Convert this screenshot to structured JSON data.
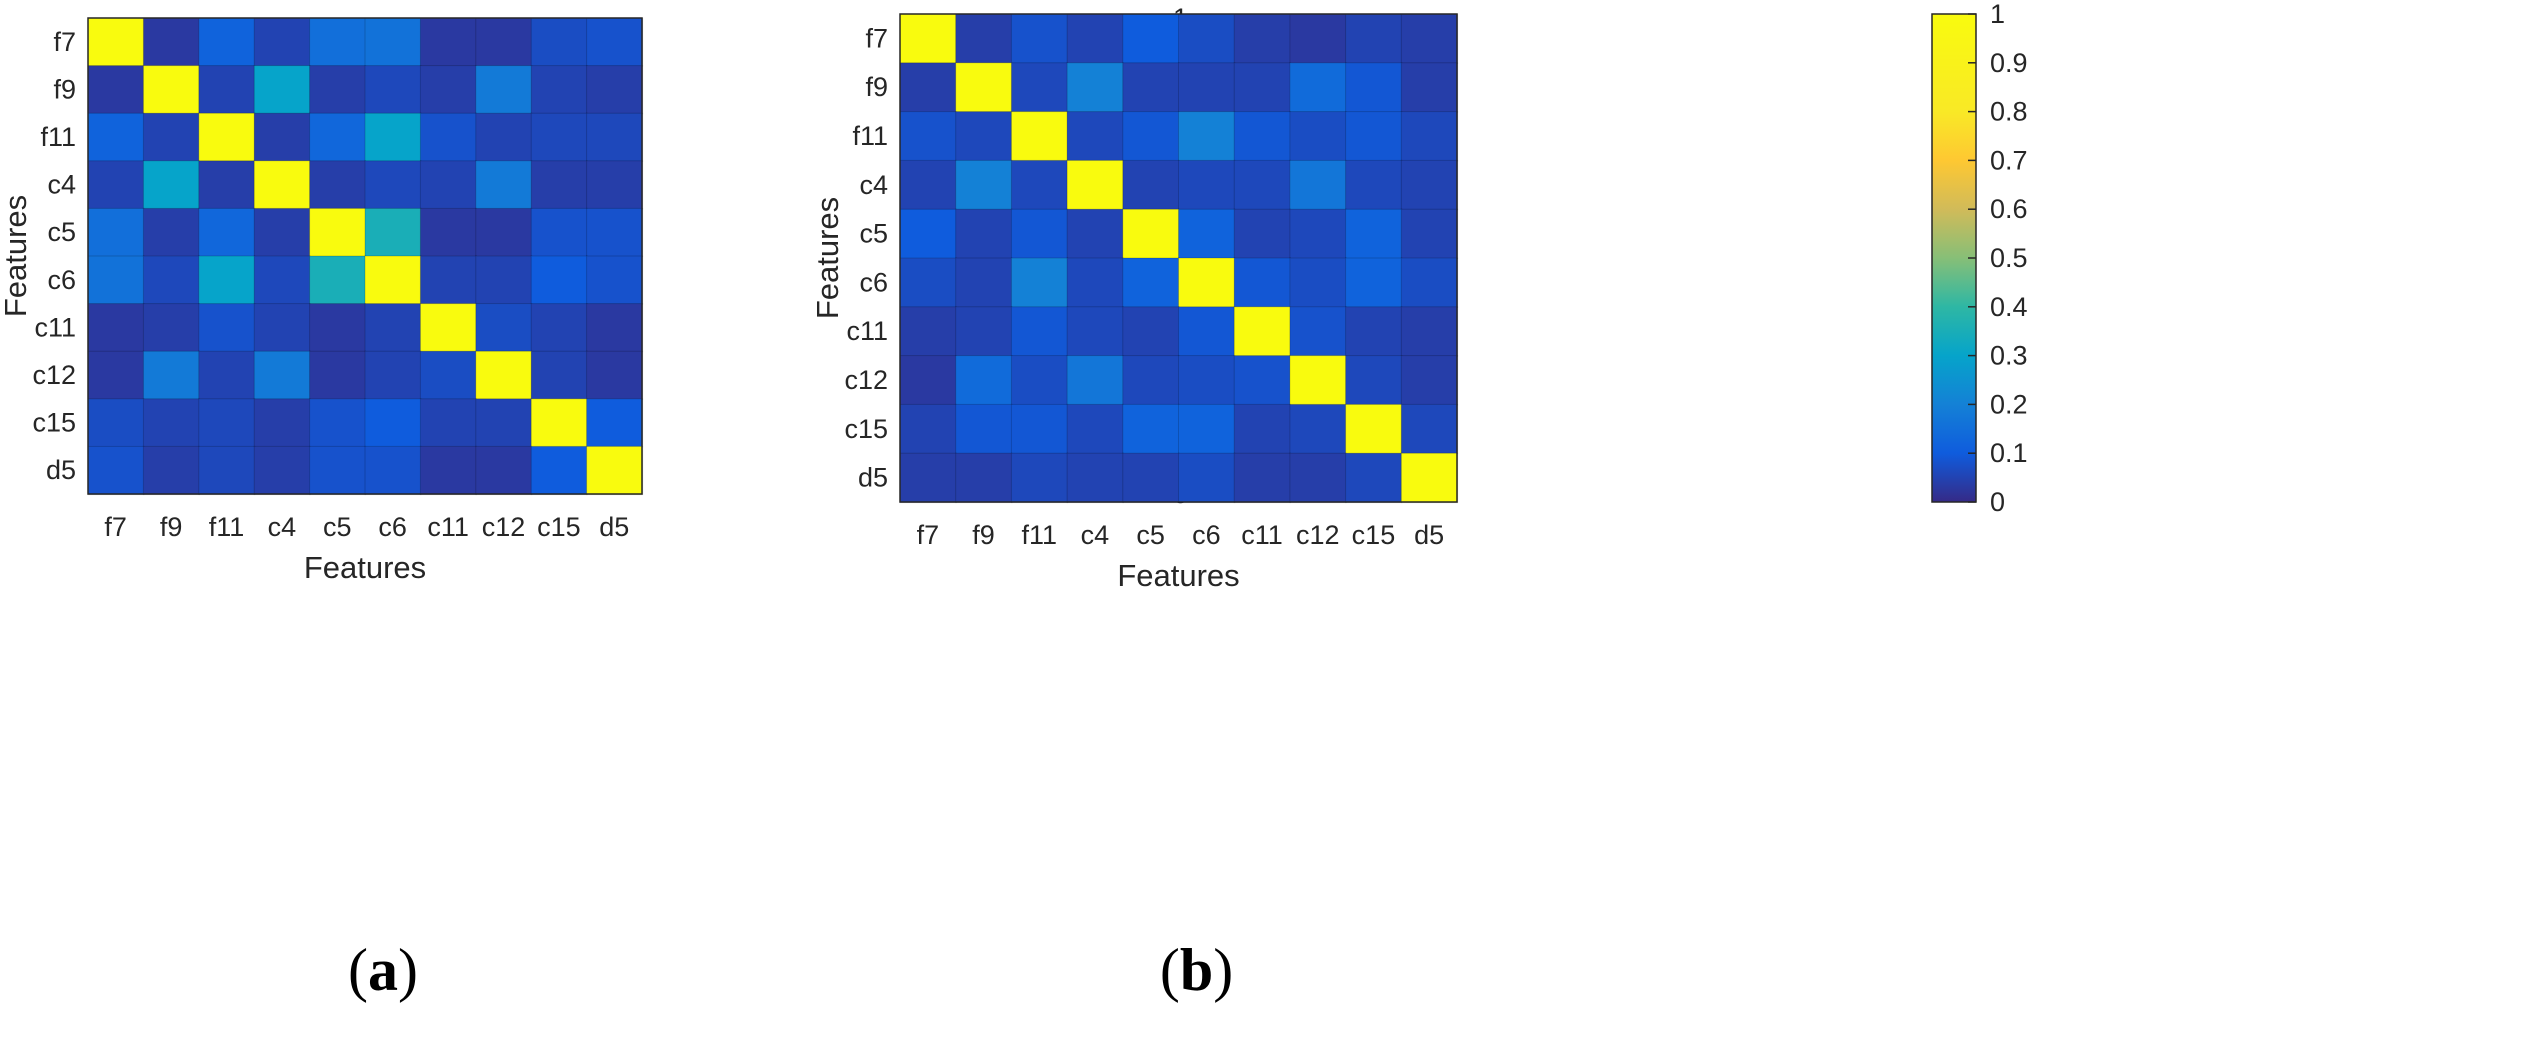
{
  "chart_data": [
    {
      "type": "heatmap",
      "panel_label": "(a)",
      "panel_letter": "a",
      "xlabel": "Features",
      "ylabel": "Features",
      "categories": [
        "f7",
        "f9",
        "f11",
        "c4",
        "c5",
        "c6",
        "c11",
        "c12",
        "c15",
        "d5"
      ],
      "colorbar": {
        "min": 0,
        "max": 1,
        "ticks": [
          0,
          0.2,
          0.4,
          0.6,
          0.8,
          1
        ],
        "tick_labels": [
          "0",
          "0.2",
          "0.4",
          "0.6",
          "0.8",
          "1"
        ]
      },
      "values": [
        [
          1.0,
          0.03,
          0.12,
          0.05,
          0.15,
          0.16,
          0.03,
          0.03,
          0.07,
          0.08
        ],
        [
          0.03,
          1.0,
          0.05,
          0.3,
          0.04,
          0.06,
          0.04,
          0.18,
          0.05,
          0.04
        ],
        [
          0.12,
          0.05,
          1.0,
          0.04,
          0.13,
          0.3,
          0.08,
          0.05,
          0.06,
          0.06
        ],
        [
          0.05,
          0.3,
          0.04,
          1.0,
          0.04,
          0.06,
          0.05,
          0.18,
          0.04,
          0.04
        ],
        [
          0.15,
          0.04,
          0.13,
          0.04,
          1.0,
          0.35,
          0.03,
          0.03,
          0.08,
          0.08
        ],
        [
          0.16,
          0.06,
          0.3,
          0.06,
          0.35,
          1.0,
          0.05,
          0.05,
          0.1,
          0.08
        ],
        [
          0.03,
          0.04,
          0.08,
          0.05,
          0.03,
          0.05,
          1.0,
          0.07,
          0.05,
          0.03
        ],
        [
          0.03,
          0.18,
          0.05,
          0.18,
          0.03,
          0.05,
          0.07,
          1.0,
          0.05,
          0.03
        ],
        [
          0.07,
          0.05,
          0.06,
          0.04,
          0.08,
          0.1,
          0.05,
          0.05,
          1.0,
          0.1
        ],
        [
          0.08,
          0.04,
          0.06,
          0.04,
          0.08,
          0.08,
          0.03,
          0.03,
          0.1,
          1.0
        ]
      ]
    },
    {
      "type": "heatmap",
      "panel_label": "(b)",
      "panel_letter": "b",
      "xlabel": "Features",
      "ylabel": "Features",
      "categories": [
        "f7",
        "f9",
        "f11",
        "c4",
        "c5",
        "c6",
        "c11",
        "c12",
        "c15",
        "d5"
      ],
      "colorbar": {
        "min": 0,
        "max": 1,
        "ticks": [
          0,
          0.1,
          0.2,
          0.3,
          0.4,
          0.5,
          0.6,
          0.7,
          0.8,
          0.9,
          1
        ],
        "tick_labels": [
          "0",
          "0.1",
          "0.2",
          "0.3",
          "0.4",
          "0.5",
          "0.6",
          "0.7",
          "0.8",
          "0.9",
          "1"
        ]
      },
      "values": [
        [
          1.0,
          0.04,
          0.08,
          0.05,
          0.1,
          0.07,
          0.04,
          0.03,
          0.05,
          0.04
        ],
        [
          0.04,
          1.0,
          0.06,
          0.2,
          0.05,
          0.05,
          0.05,
          0.14,
          0.09,
          0.04
        ],
        [
          0.08,
          0.06,
          1.0,
          0.06,
          0.09,
          0.2,
          0.09,
          0.07,
          0.09,
          0.06
        ],
        [
          0.05,
          0.2,
          0.06,
          1.0,
          0.05,
          0.06,
          0.06,
          0.17,
          0.06,
          0.05
        ],
        [
          0.1,
          0.05,
          0.09,
          0.05,
          1.0,
          0.12,
          0.05,
          0.06,
          0.12,
          0.05
        ],
        [
          0.07,
          0.05,
          0.2,
          0.06,
          0.12,
          1.0,
          0.09,
          0.07,
          0.12,
          0.07
        ],
        [
          0.04,
          0.05,
          0.09,
          0.06,
          0.05,
          0.09,
          1.0,
          0.08,
          0.05,
          0.04
        ],
        [
          0.03,
          0.14,
          0.07,
          0.17,
          0.06,
          0.07,
          0.08,
          1.0,
          0.06,
          0.04
        ],
        [
          0.05,
          0.09,
          0.09,
          0.06,
          0.12,
          0.12,
          0.05,
          0.06,
          1.0,
          0.06
        ],
        [
          0.04,
          0.04,
          0.06,
          0.05,
          0.05,
          0.07,
          0.04,
          0.04,
          0.06,
          1.0
        ]
      ]
    }
  ]
}
